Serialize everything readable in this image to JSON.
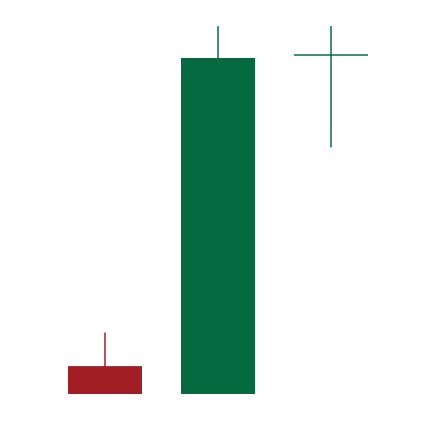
{
  "chart_data": {
    "type": "candlestick",
    "title": "",
    "xlabel": "",
    "ylabel": "",
    "grid": false,
    "legend": "none",
    "ylim": [
      0,
      100
    ],
    "colors": {
      "up": "#056a40",
      "down": "#a11e24",
      "background": "#ffffff"
    },
    "candles": [
      {
        "open": 8.3,
        "high": 18.3,
        "low": 0,
        "close": 0
      },
      {
        "open": 0,
        "high": 109.5,
        "low": 0,
        "close": 100
      },
      {
        "open": 100.9,
        "high": 109.5,
        "low": 73.4,
        "close": 100.9
      }
    ]
  }
}
